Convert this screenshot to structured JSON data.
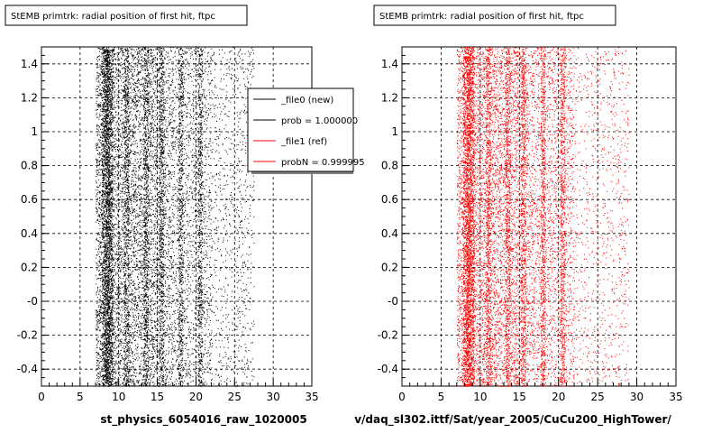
{
  "chart_data": [
    {
      "type": "scatter",
      "title": "StEMB primtrk: radial position of first hit, ftpc",
      "xlabel": "st_physics_6054016_raw_1020005",
      "ylabel": "",
      "xlim": [
        0,
        35
      ],
      "ylim": [
        -0.5,
        1.5
      ],
      "x_ticks": [
        "0",
        "5",
        "10",
        "15",
        "20",
        "25",
        "30",
        "35"
      ],
      "y_ticks": [
        "-0.4",
        "-0.2",
        "-0",
        "0.2",
        "0.4",
        "0.6",
        "0.8",
        "1",
        "1.2",
        "1.4"
      ],
      "grid": true,
      "grid_style": "dashed",
      "marker_color": "#000000",
      "x_distribution": {
        "min": 7.0,
        "peak": 8.5,
        "bulk_end": 22.0,
        "tail_end": 27.5,
        "band_peaks": [
          8.5,
          11.0,
          13.5,
          15.5,
          18.0,
          20.5
        ]
      },
      "legend_position": "top-right",
      "legend": [
        {
          "label": "_file0 (new)",
          "color": "#000000"
        },
        {
          "label": "prob = 1.000000",
          "color": "#000000"
        },
        {
          "label": "_file1 (ref)",
          "color": "#ff0000"
        },
        {
          "label": "probN = 0.999995",
          "color": "#ff0000"
        }
      ]
    },
    {
      "type": "scatter",
      "title": "StEMB primtrk: radial position of first hit, ftpc",
      "xlabel": "v/daq_sl302.ittf/Sat/year_2005/CuCu200_HighTower/",
      "ylabel": "",
      "xlim": [
        0,
        35
      ],
      "ylim": [
        -0.5,
        1.5
      ],
      "x_ticks": [
        "0",
        "5",
        "10",
        "15",
        "20",
        "25",
        "30",
        "35"
      ],
      "y_ticks": [
        "-0.4",
        "-0.2",
        "-0",
        "0.2",
        "0.4",
        "0.6",
        "0.8",
        "1",
        "1.2",
        "1.4"
      ],
      "grid": true,
      "grid_style": "dashed",
      "marker_color": "#ff0000",
      "x_distribution": {
        "min": 7.0,
        "peak": 8.5,
        "bulk_end": 22.0,
        "tail_end": 29.0,
        "band_peaks": [
          8.5,
          11.0,
          13.5,
          15.5,
          18.0,
          20.5
        ]
      }
    }
  ]
}
